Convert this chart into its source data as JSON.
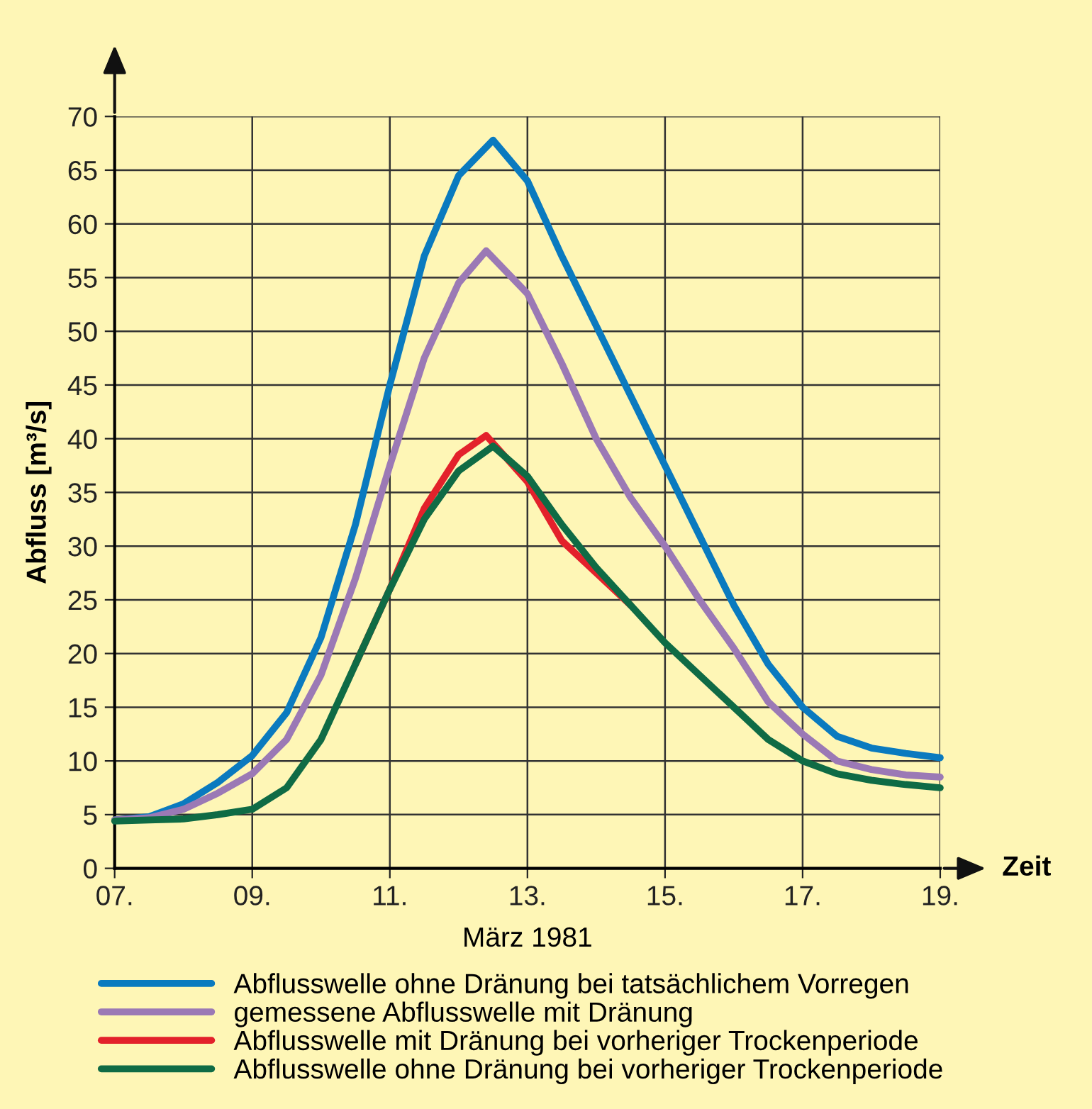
{
  "chart_data": {
    "type": "line",
    "xlabel": "März 1981",
    "ylabel": "Abfluss [m³/s]",
    "annotations": [
      "Zeit"
    ],
    "xlim": [
      7,
      19
    ],
    "ylim": [
      0,
      70
    ],
    "xticks": [
      {
        "value": 7,
        "label": "07."
      },
      {
        "value": 9,
        "label": "09."
      },
      {
        "value": 11,
        "label": "11."
      },
      {
        "value": 13,
        "label": "13."
      },
      {
        "value": 15,
        "label": "15."
      },
      {
        "value": 17,
        "label": "17."
      },
      {
        "value": 19,
        "label": "19."
      }
    ],
    "yticks": [
      0,
      5,
      10,
      15,
      20,
      25,
      30,
      35,
      40,
      45,
      50,
      55,
      60,
      65,
      70
    ],
    "grid": true,
    "legend": "bottom",
    "marker": "none",
    "line_style": "solid",
    "x": [
      7,
      7.5,
      8,
      8.5,
      9,
      9.5,
      10,
      10.5,
      11,
      11.5,
      12,
      12.5,
      13,
      13.5,
      14,
      14.5,
      15,
      15.5,
      16,
      16.5,
      17,
      17.5,
      18,
      18.5,
      19
    ],
    "series": [
      {
        "name": "Abflusswelle ohne Dränung bei tatsächlichem Vorregen",
        "color": "#0a7abf",
        "values": [
          4.5,
          4.8,
          6,
          8,
          10.5,
          14.5,
          21.5,
          32,
          45,
          57,
          64.5,
          67.8,
          64,
          57,
          50.5,
          44,
          37.5,
          31,
          24.5,
          19,
          15,
          12.3,
          11.2,
          10.7,
          10.3
        ]
      },
      {
        "name": "gemessene Abflusswelle mit Dränung",
        "color": "#9b79b5",
        "x": [
          7,
          7.5,
          8,
          8.5,
          9,
          9.5,
          10,
          10.5,
          11,
          11.5,
          12,
          12.4,
          13,
          13.5,
          14,
          14.5,
          15,
          15.5,
          16,
          16.5,
          17,
          17.5,
          18,
          18.5,
          19
        ],
        "values": [
          4.5,
          4.7,
          5.5,
          7,
          8.8,
          12,
          18,
          27,
          37.5,
          47.5,
          54.5,
          57.5,
          53.5,
          47,
          40,
          34.5,
          30,
          25,
          20.5,
          15.5,
          12.5,
          10,
          9.2,
          8.7,
          8.5
        ]
      },
      {
        "name": "Abflusswelle mit Dränung bei vorheriger Trockenperiode",
        "color": "#e3212b",
        "x": [
          10.5,
          11,
          11.5,
          12,
          12.4,
          13,
          13.5,
          14,
          14.5
        ],
        "values": [
          19,
          26,
          33.5,
          38.5,
          40.3,
          36,
          30.5,
          27.5,
          24.5
        ]
      },
      {
        "name": "Abflusswelle ohne Dränung bei vorheriger Trockenperiode",
        "color": "#0f6b45",
        "values": [
          4.4,
          4.5,
          4.6,
          5,
          5.5,
          7.5,
          12,
          19,
          26,
          32.5,
          37,
          39.3,
          36.5,
          32,
          28,
          24.5,
          21,
          18,
          15,
          12,
          10,
          8.8,
          8.2,
          7.8,
          7.5
        ]
      }
    ]
  }
}
